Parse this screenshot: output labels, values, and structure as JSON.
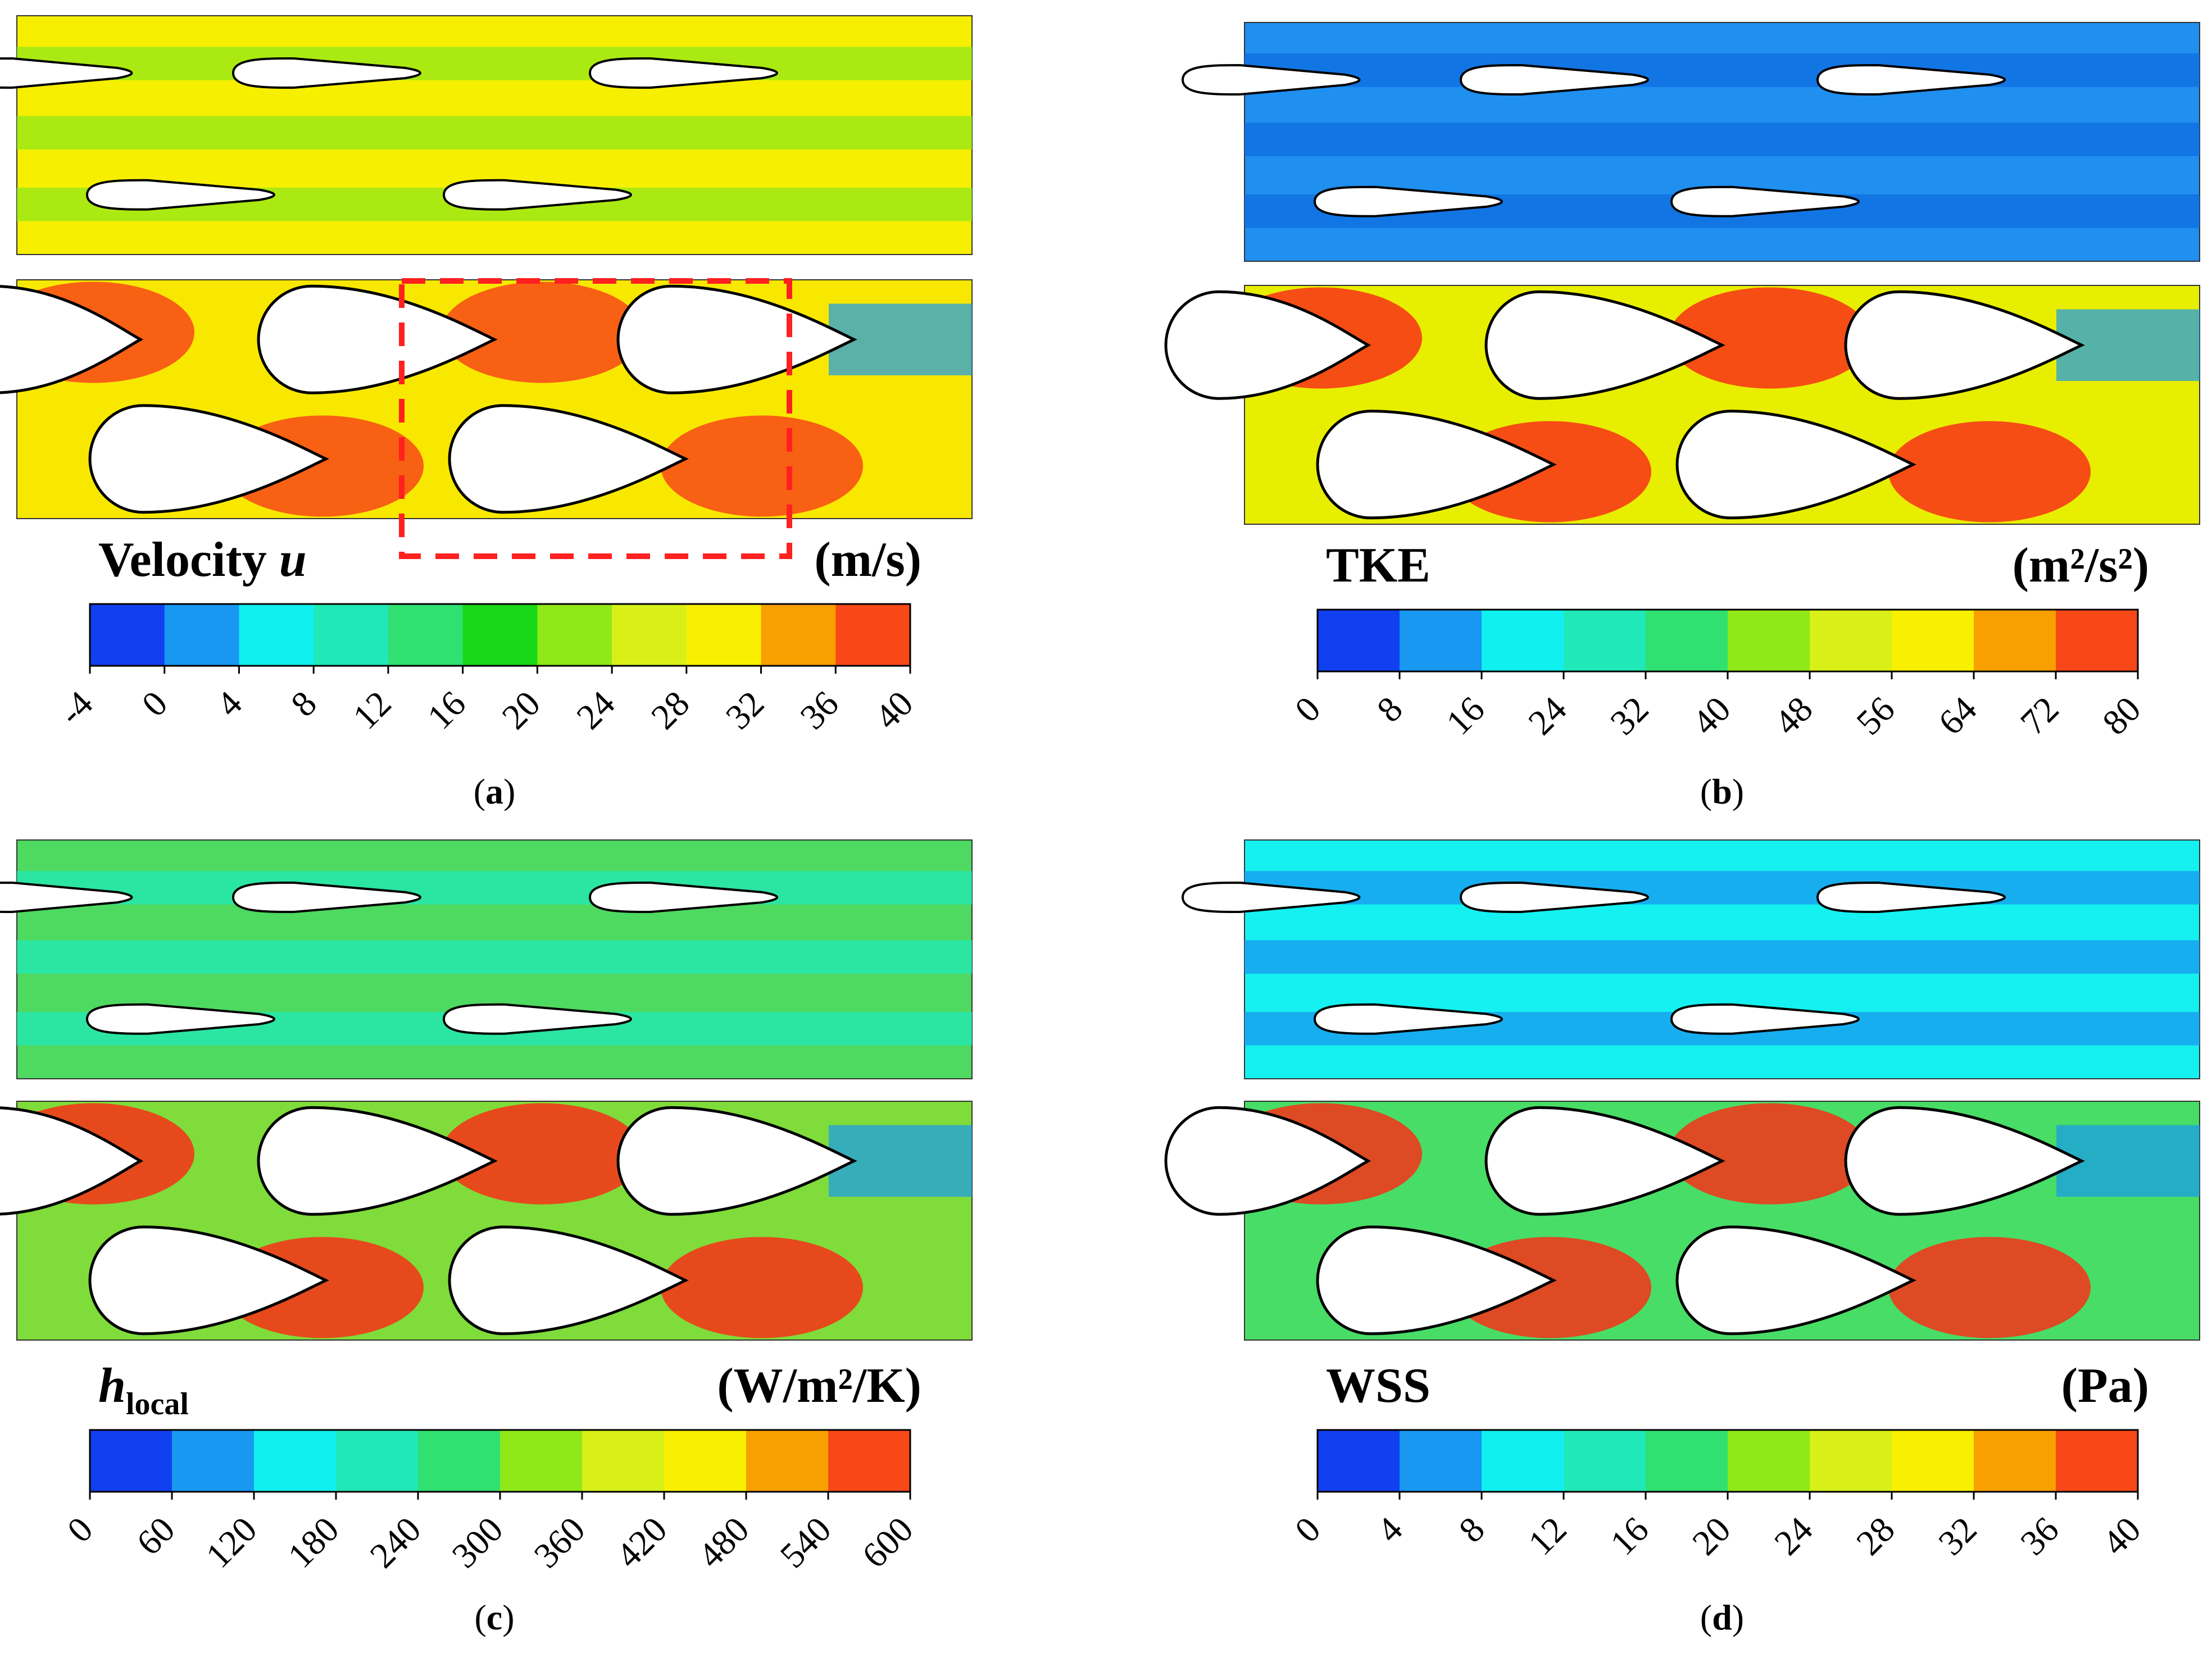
{
  "panels": [
    {
      "id": "a",
      "caption_letter": "a",
      "quantity_name": "Velocity",
      "quantity_symbol": "u",
      "quantity_subscript": "",
      "unit_text": "(m/s)",
      "unit_sup": "",
      "ticks": [
        "-4",
        "0",
        "4",
        "8",
        "12",
        "16",
        "20",
        "24",
        "28",
        "32",
        "36",
        "40"
      ],
      "top_bg": "#f6ef00",
      "bottom_bg": "#f8e800",
      "highlight_box": true
    },
    {
      "id": "b",
      "caption_letter": "b",
      "quantity_name": "TKE",
      "quantity_symbol": "",
      "quantity_subscript": "",
      "unit_text": "(m²/s²)",
      "unit_sup": "",
      "ticks": [
        "0",
        "8",
        "16",
        "24",
        "32",
        "40",
        "48",
        "56",
        "64",
        "72",
        "80"
      ],
      "top_bg": "#1f8ff0",
      "bottom_bg": "#e8ee00",
      "highlight_box": false
    },
    {
      "id": "c",
      "caption_letter": "c",
      "quantity_name": "",
      "quantity_symbol": "h",
      "quantity_subscript": "local",
      "unit_text": "(W/m²/K)",
      "unit_sup": "",
      "ticks": [
        "0",
        "60",
        "120",
        "180",
        "240",
        "300",
        "360",
        "420",
        "480",
        "540",
        "600"
      ],
      "top_bg": "#4ed960",
      "bottom_bg": "#7fdc3a",
      "highlight_box": false
    },
    {
      "id": "d",
      "caption_letter": "d",
      "quantity_name": "WSS",
      "quantity_symbol": "",
      "quantity_subscript": "",
      "unit_text": "(Pa)",
      "unit_sup": "",
      "ticks": [
        "0",
        "4",
        "8",
        "12",
        "16",
        "20",
        "24",
        "28",
        "32",
        "36",
        "40"
      ],
      "top_bg": "#15f0f0",
      "bottom_bg": "#48dd66",
      "highlight_box": false
    }
  ],
  "colormap": [
    "#1040f0",
    "#1898f0",
    "#10f0f0",
    "#20e8b8",
    "#30e070",
    "#18d818",
    "#90e818",
    "#d8f018",
    "#f8f000",
    "#f8a000",
    "#f84818"
  ],
  "colors": {
    "fin_fill": "#ffffff",
    "fin_stroke": "#000000",
    "highlight": "#ff2020",
    "hot": "#f83018",
    "cold": "#1050f0"
  }
}
